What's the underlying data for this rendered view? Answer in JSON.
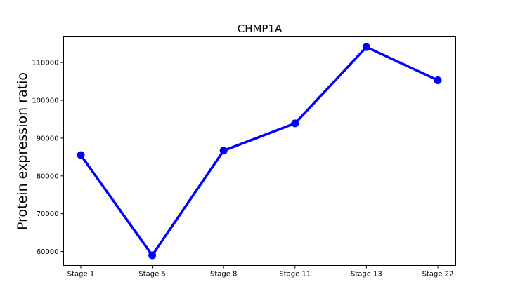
{
  "chart_data": {
    "type": "line",
    "title": "CHMP1A",
    "xlabel": "",
    "ylabel": "Protein expression ratio",
    "categories": [
      "Stage 1",
      "Stage 5",
      "Stage 8",
      "Stage 11",
      "Stage 13",
      "Stage 22"
    ],
    "series": [
      {
        "values": [
          85500,
          59000,
          86700,
          93900,
          114100,
          105300
        ],
        "color": "#0000ff"
      }
    ],
    "yticks": [
      60000,
      70000,
      80000,
      90000,
      100000,
      110000
    ],
    "ylim": [
      56300,
      116800
    ],
    "grid": false,
    "legend": "none"
  }
}
